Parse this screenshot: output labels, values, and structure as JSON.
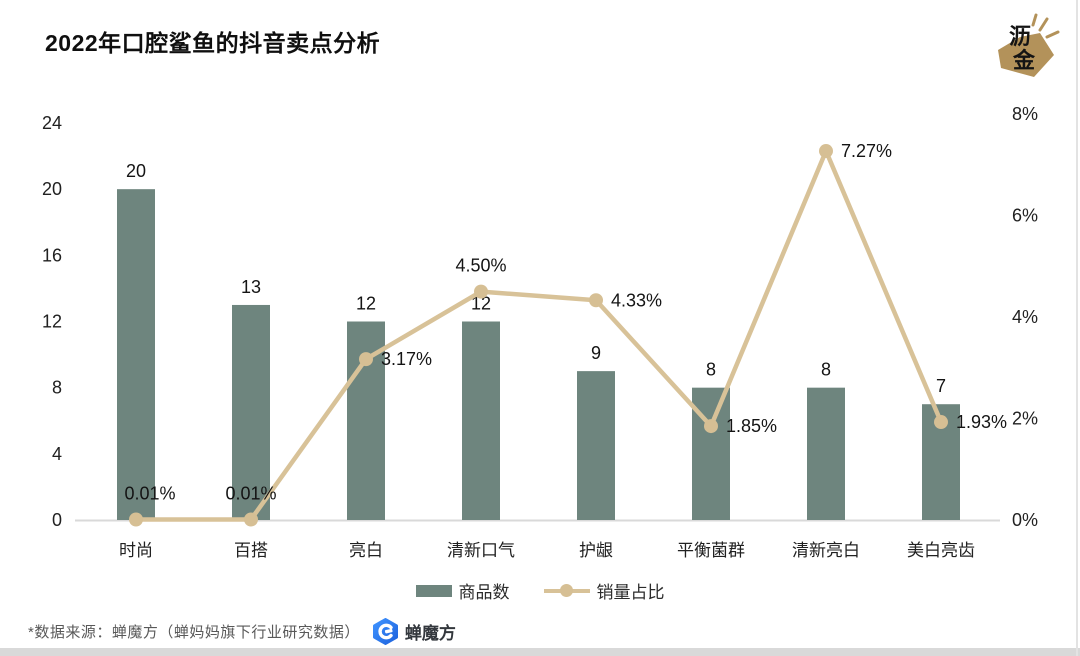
{
  "header": {
    "title": "2022年口腔鲨鱼的抖音卖点分析",
    "logo": {
      "char_top": "沥",
      "char_bottom": "金",
      "color": "#b3925a"
    }
  },
  "chart_data": {
    "type": "bar",
    "subtype": "bar-line-combo",
    "title": "2022年口腔鲨鱼的抖音卖点分析",
    "categories": [
      "时尚",
      "百搭",
      "亮白",
      "清新口气",
      "护龈",
      "平衡菌群",
      "清新亮白",
      "美白亮齿"
    ],
    "series": [
      {
        "name": "商品数",
        "type": "bar",
        "axis": "left",
        "color": "#6e857e",
        "values": [
          20,
          13,
          12,
          12,
          9,
          8,
          8,
          7
        ]
      },
      {
        "name": "销量占比",
        "type": "line",
        "axis": "right",
        "color": "#d8c298",
        "dot_color": "#d6bf94",
        "values": [
          0.01,
          0.01,
          3.17,
          4.5,
          4.33,
          1.85,
          7.27,
          1.93
        ],
        "point_labels": [
          "0.01%",
          "0.01%",
          "3.17%",
          "4.50%",
          "4.33%",
          "1.85%",
          "7.27%",
          "1.93%"
        ],
        "label_placement": [
          "above",
          "above",
          "right",
          "above",
          "right",
          "right",
          "right",
          "right"
        ]
      }
    ],
    "left_axis": {
      "ticks": [
        0,
        4,
        8,
        12,
        16,
        20,
        24
      ],
      "min": 0,
      "max": 24
    },
    "right_axis": {
      "tick_labels": [
        "0%",
        "2%",
        "4%",
        "6%",
        "8%"
      ],
      "min": 0,
      "max": 8
    },
    "grid": false,
    "legend_position": "bottom"
  },
  "legend": {
    "items": [
      {
        "label": "商品数",
        "swatch": "bar"
      },
      {
        "label": "销量占比",
        "swatch": "line"
      }
    ]
  },
  "footer": {
    "source_note": "*数据来源：蝉魔方（蝉妈妈旗下行业研究数据）",
    "brand_name": "蝉魔方"
  }
}
